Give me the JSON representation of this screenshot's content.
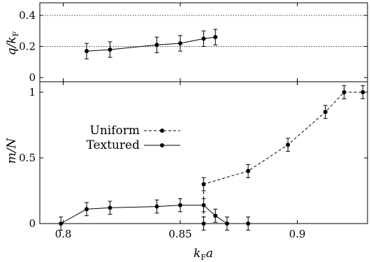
{
  "chart_data": [
    {
      "type": "scatter",
      "ylabel": "q/k_F",
      "xlim": [
        0.79,
        0.93
      ],
      "ylim": [
        0,
        0.42
      ],
      "yticks": [
        "0",
        "0.2",
        "0.4"
      ],
      "reference_lines": [
        0.2,
        0.4
      ],
      "series": [
        {
          "style": "solid",
          "x": [
            0.81,
            0.82,
            0.84,
            0.85,
            0.86,
            0.865
          ],
          "y": [
            0.17,
            0.18,
            0.21,
            0.22,
            0.25,
            0.26
          ],
          "yerr": [
            0.05,
            0.05,
            0.05,
            0.05,
            0.05,
            0.05
          ]
        }
      ]
    },
    {
      "type": "scatter",
      "xlabel": "k_F a",
      "ylabel": "m/N",
      "xlim": [
        0.79,
        0.93
      ],
      "ylim": [
        0,
        1.07
      ],
      "xticks": [
        "0.8",
        "0.85",
        "0.9"
      ],
      "yticks": [
        "0",
        "0.5",
        "1"
      ],
      "legend_position": "upper-left",
      "series": [
        {
          "name": "Uniform",
          "style": "dashed",
          "x": [
            0.86,
            0.86,
            0.879,
            0.896,
            0.912,
            0.92,
            0.928
          ],
          "y": [
            0,
            0.3,
            0.4,
            0.6,
            0.85,
            1.0,
            1.0
          ],
          "yerr": [
            0.05,
            0.05,
            0.05,
            0.05,
            0.05,
            0.05,
            0.05
          ]
        },
        {
          "name": "Textured",
          "style": "solid",
          "x": [
            0.799,
            0.81,
            0.82,
            0.84,
            0.85,
            0.86,
            0.865,
            0.87,
            0.879
          ],
          "y": [
            0,
            0.11,
            0.12,
            0.13,
            0.14,
            0.14,
            0.06,
            0,
            0
          ],
          "yerr": [
            0.05,
            0.05,
            0.05,
            0.05,
            0.05,
            0.05,
            0.05,
            0.05,
            0.05
          ]
        }
      ]
    }
  ]
}
